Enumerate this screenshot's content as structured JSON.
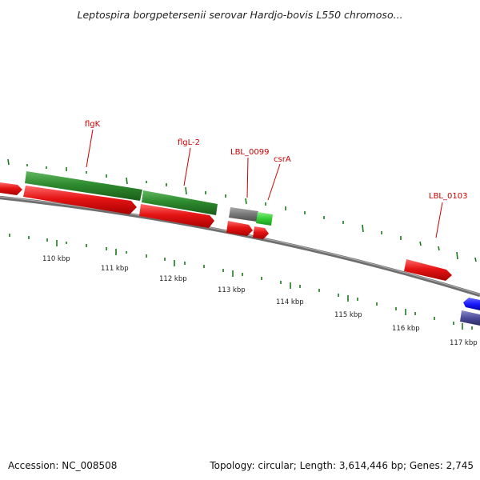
{
  "header": {
    "title": "Leptospira borgpetersenii serovar Hardjo-bovis L550 chromoso..."
  },
  "footer": {
    "accession": "Accession: NC_008508",
    "summary": "Topology: circular; Length: 3,614,446 bp; Genes: 2,745"
  },
  "colors": {
    "forward_cds": "#2e8b2e",
    "reverse_cds": "#e01010",
    "highlight": "#33cc33",
    "other_feature": "#777777",
    "blue_feature": "#1a1aff",
    "purple_feature": "#4b4b9a",
    "backbone": "#808080",
    "gc_ticks": "#1a7a1a",
    "label": "#cc0000"
  },
  "gene_labels": [
    "flgK",
    "flgL-2",
    "LBL_0099",
    "csrA",
    "LBL_0103"
  ],
  "scale": {
    "tick_labels": [
      "110 kbp",
      "111 kbp",
      "112 kbp",
      "113 kbp",
      "114 kbp",
      "115 kbp",
      "116 kbp",
      "117 kbp"
    ]
  }
}
